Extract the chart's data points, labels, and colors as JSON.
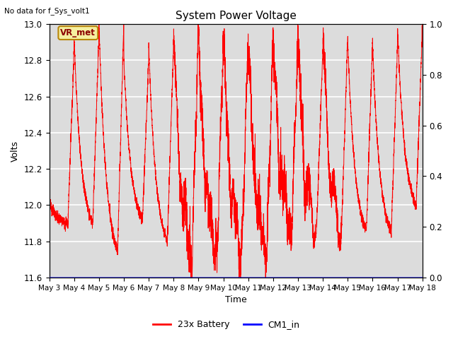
{
  "title": "System Power Voltage",
  "top_left_text": "No data for f_Sys_volt1",
  "xlabel": "Time",
  "ylabel": "Volts",
  "ylim_left": [
    11.6,
    13.0
  ],
  "ylim_right": [
    0.0,
    1.0
  ],
  "x_tick_labels": [
    "May 3",
    "May 4",
    "May 5",
    "May 6",
    "May 7",
    "May 8",
    "May 9",
    "May 10",
    "May 11",
    "May 12",
    "May 13",
    "May 14",
    "May 15",
    "May 16",
    "May 17",
    "May 18"
  ],
  "legend_entries": [
    "23x Battery",
    "CM1_in"
  ],
  "legend_colors": [
    "red",
    "blue"
  ],
  "vr_met_label": "VR_met",
  "background_color": "#dcdcdc",
  "grid_color": "white",
  "line_color_battery": "red",
  "line_color_cm1": "blue",
  "figsize": [
    6.4,
    4.8
  ],
  "dpi": 100
}
